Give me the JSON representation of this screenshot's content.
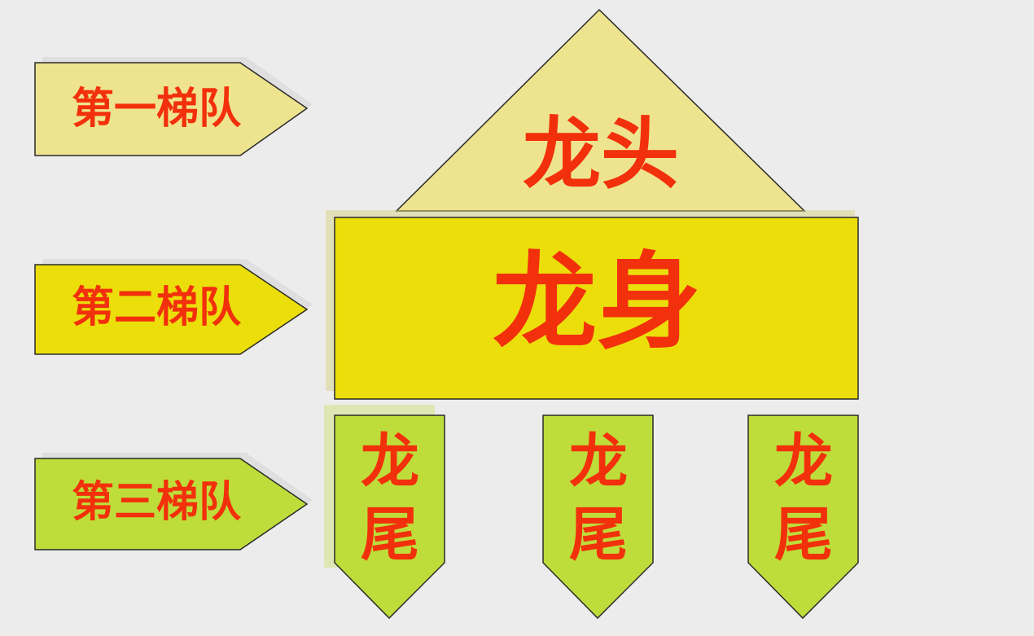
{
  "tiers": {
    "tier1_label": "第一梯队",
    "tier2_label": "第二梯队",
    "tier3_label": "第三梯队"
  },
  "dragon": {
    "head_label": "龙头",
    "body_label": "龙身",
    "tails": [
      {
        "line1": "龙",
        "line2": "尾"
      },
      {
        "line1": "龙",
        "line2": "尾"
      },
      {
        "line1": "龙",
        "line2": "尾"
      }
    ]
  },
  "colors": {
    "background": "#ececec",
    "tier1_fill": "#eee48f",
    "tier2_fill": "#ebde0b",
    "tier3_fill": "#bedd3a",
    "text_red": "#f2300c",
    "outline": "#2a2a2a"
  }
}
